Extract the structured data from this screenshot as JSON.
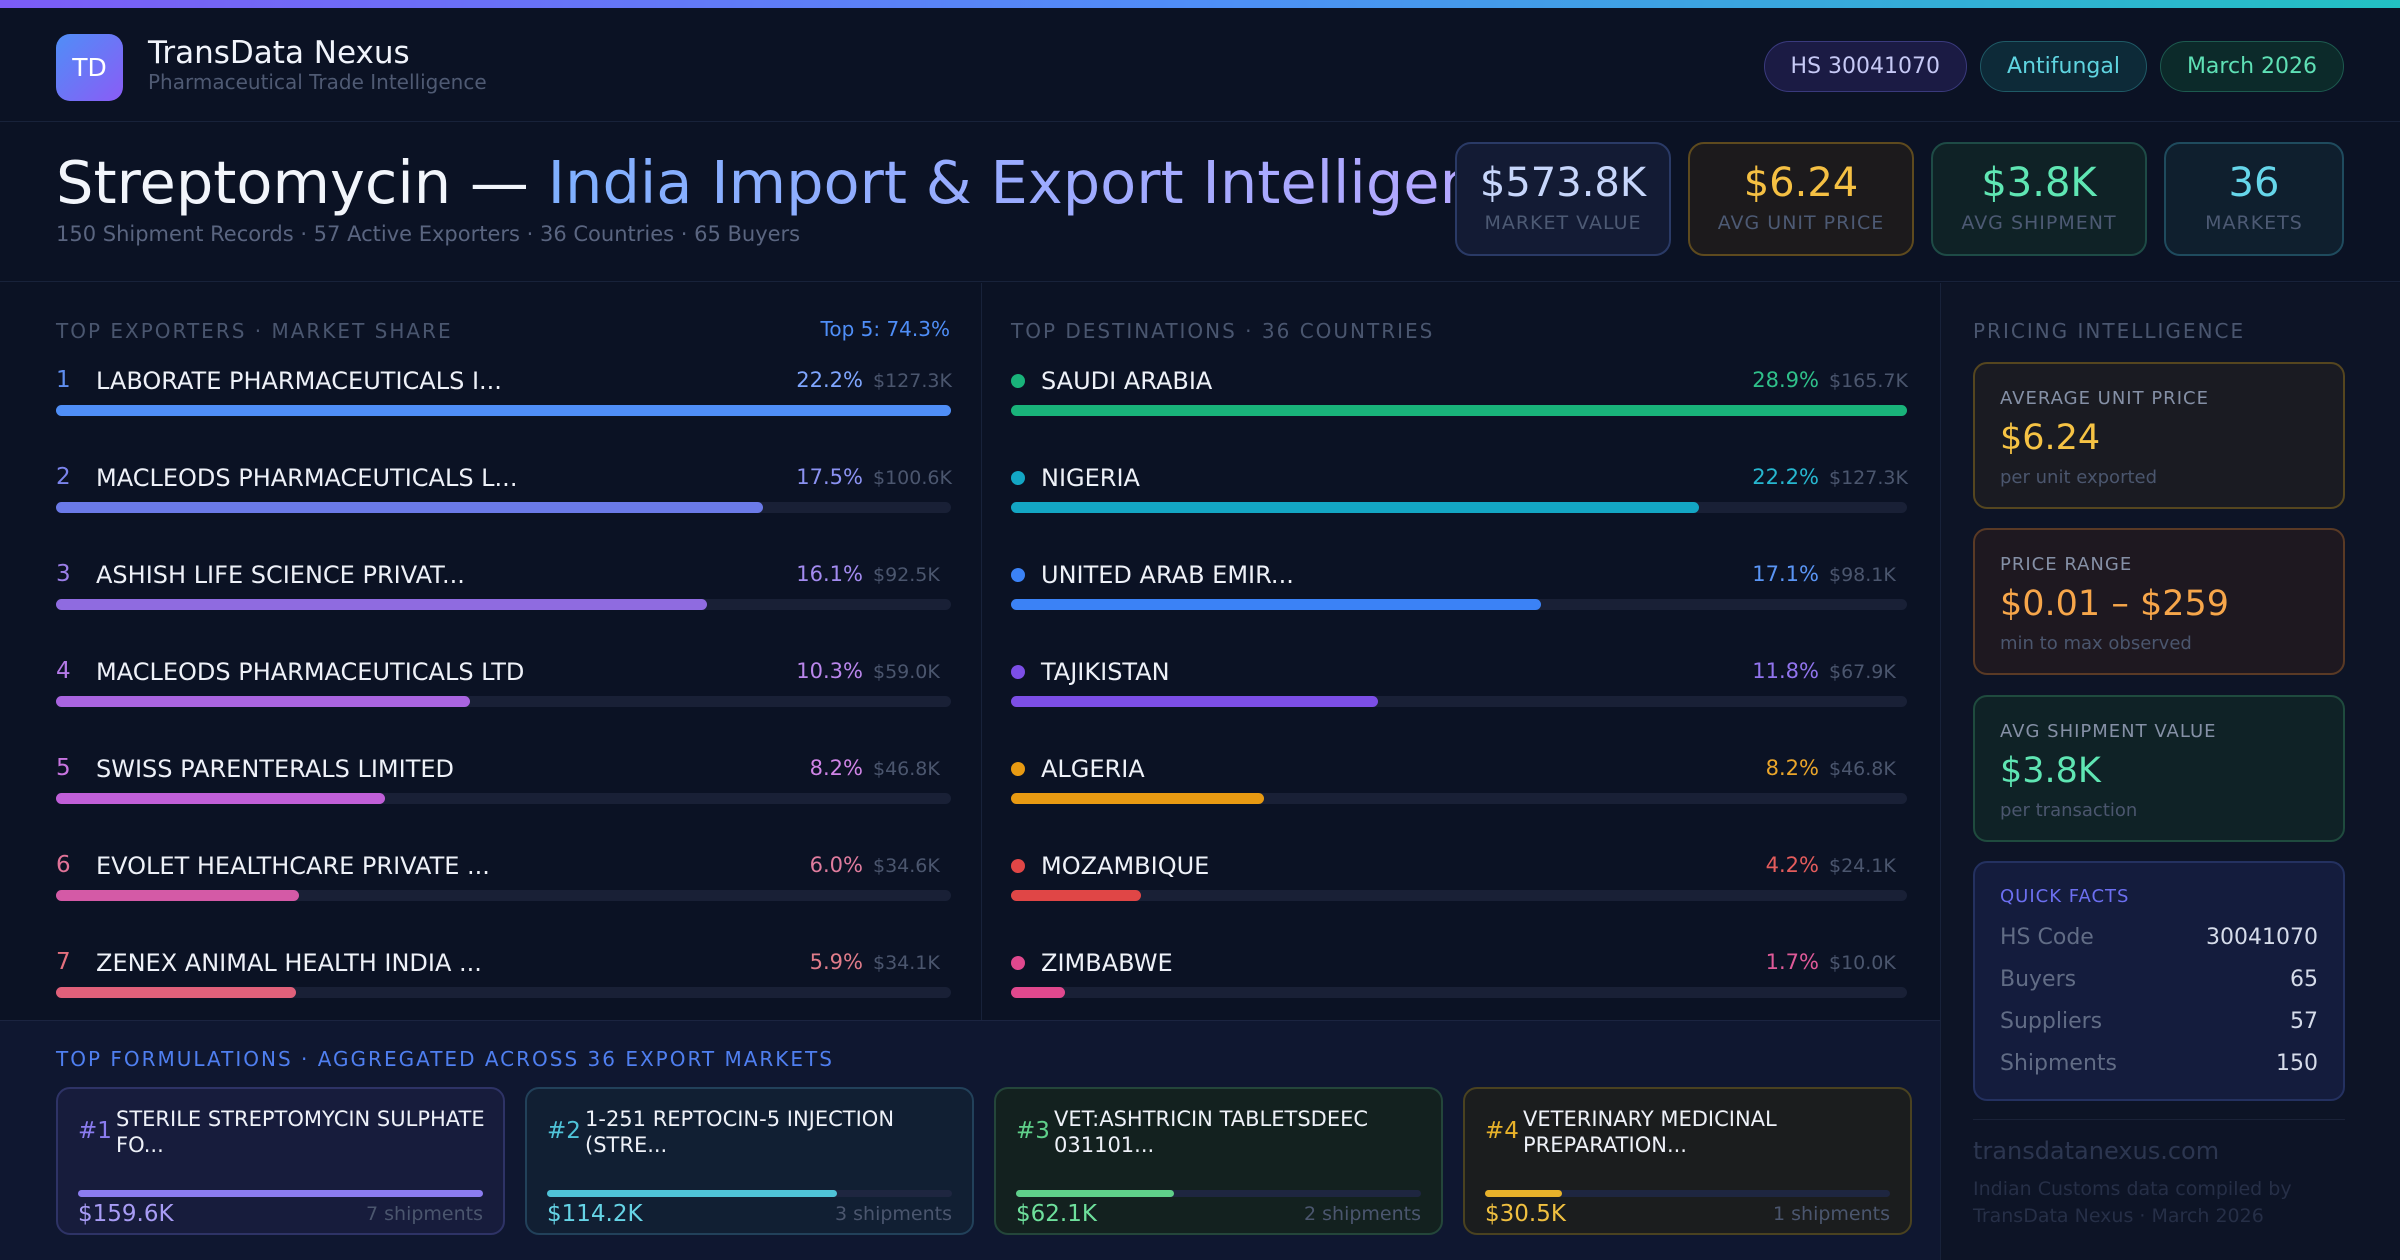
{
  "header": {
    "logo_text": "TD",
    "brand_name": "TransData Nexus",
    "brand_sub": "Pharmaceutical Trade Intelligence",
    "pills": [
      "HS 30041070",
      "Antifungal",
      "March 2026"
    ]
  },
  "title": {
    "product": "Streptomycin — ",
    "rest": "India Import & Export Intelligence",
    "subtitle": "150 Shipment Records · 57 Active Exporters · 36 Countries · 65 Buyers"
  },
  "stats": [
    {
      "value": "$573.8K",
      "label": "MARKET VALUE"
    },
    {
      "value": "$6.24",
      "label": "AVG UNIT PRICE"
    },
    {
      "value": "$3.8K",
      "label": "AVG SHIPMENT"
    },
    {
      "value": "36",
      "label": "MARKETS"
    }
  ],
  "exporters": {
    "label": "TOP EXPORTERS · MARKET SHARE",
    "top5": "Top 5: 74.3%",
    "rows": [
      {
        "rank": "1",
        "name": "LABORATE PHARMACEUTICALS I...",
        "pct": "22.2%",
        "amount": "$127.3K",
        "share": 1.0,
        "color": "#4f8ef7"
      },
      {
        "rank": "2",
        "name": "MACLEODS PHARMACEUTICALS L...",
        "pct": "17.5%",
        "amount": "$100.6K",
        "share": 0.79,
        "color": "#6b7ae8"
      },
      {
        "rank": "3",
        "name": "ASHISH LIFE SCIENCE PRIVAT...",
        "pct": "16.1%",
        "amount": "$92.5K",
        "share": 0.727,
        "color": "#8f6be0"
      },
      {
        "rank": "4",
        "name": "MACLEODS PHARMACEUTICALS LTD",
        "pct": "10.3%",
        "amount": "$59.0K",
        "share": 0.463,
        "color": "#a964e0"
      },
      {
        "rank": "5",
        "name": "SWISS PARENTERALS LIMITED",
        "pct": "8.2%",
        "amount": "$46.8K",
        "share": 0.368,
        "color": "#c05fd8"
      },
      {
        "rank": "6",
        "name": "EVOLET HEALTHCARE PRIVATE ...",
        "pct": "6.0%",
        "amount": "$34.6K",
        "share": 0.272,
        "color": "#d45aa6"
      },
      {
        "rank": "7",
        "name": "ZENEX ANIMAL HEALTH INDIA ...",
        "pct": "5.9%",
        "amount": "$34.1K",
        "share": 0.268,
        "color": "#e0607a"
      }
    ]
  },
  "destinations": {
    "label": "TOP DESTINATIONS · 36 COUNTRIES",
    "rows": [
      {
        "name": "SAUDI ARABIA",
        "pct": "28.9%",
        "amount": "$165.7K",
        "share": 1.0,
        "color": "#19b37a"
      },
      {
        "name": "NIGERIA",
        "pct": "22.2%",
        "amount": "$127.3K",
        "share": 0.768,
        "color": "#13a6c4"
      },
      {
        "name": "UNITED ARAB EMIR...",
        "pct": "17.1%",
        "amount": "$98.1K",
        "share": 0.592,
        "color": "#3b82f6"
      },
      {
        "name": "TAJIKISTAN",
        "pct": "11.8%",
        "amount": "$67.9K",
        "share": 0.41,
        "color": "#7c4ee6"
      },
      {
        "name": "ALGERIA",
        "pct": "8.2%",
        "amount": "$46.8K",
        "share": 0.282,
        "color": "#e89a12"
      },
      {
        "name": "MOZAMBIQUE",
        "pct": "4.2%",
        "amount": "$24.1K",
        "share": 0.145,
        "color": "#e04646"
      },
      {
        "name": "ZIMBABWE",
        "pct": "1.7%",
        "amount": "$10.0K",
        "share": 0.06,
        "color": "#e0488e"
      }
    ]
  },
  "pricing": {
    "label": "PRICING INTELLIGENCE",
    "cards": [
      {
        "label": "AVERAGE UNIT PRICE",
        "value": "$6.24",
        "note": "per unit exported"
      },
      {
        "label": "PRICE RANGE",
        "value": "$0.01 – $259",
        "note": "min to max observed"
      },
      {
        "label": "AVG SHIPMENT VALUE",
        "value": "$3.8K",
        "note": "per transaction"
      }
    ],
    "facts": {
      "title": "QUICK FACTS",
      "items": [
        {
          "key": "HS Code",
          "value": "30041070"
        },
        {
          "key": "Buyers",
          "value": "65"
        },
        {
          "key": "Suppliers",
          "value": "57"
        },
        {
          "key": "Shipments",
          "value": "150"
        }
      ]
    },
    "site": "transdatanexus.com",
    "footnote": "Indian Customs data compiled by TransData Nexus · March 2026"
  },
  "formulations": {
    "label": "TOP FORMULATIONS · AGGREGATED ACROSS 36 EXPORT MARKETS",
    "items": [
      {
        "rank": "#1",
        "name": "STERILE STREPTOMYCIN SULPHATE FO...",
        "value": "$159.6K",
        "shipments": "7 shipments",
        "share": 1.0,
        "color": "#8b7cf0"
      },
      {
        "rank": "#2",
        "name": "1-251 REPTOCIN-5 INJECTION (STRE...",
        "value": "$114.2K",
        "shipments": "3 shipments",
        "share": 0.715,
        "color": "#4fc3d8"
      },
      {
        "rank": "#3",
        "name": "VET:ASHTRICIN TABLETSDEEC 031101...",
        "value": "$62.1K",
        "shipments": "2 shipments",
        "share": 0.389,
        "color": "#5fd08a"
      },
      {
        "rank": "#4",
        "name": "VETERINARY MEDICINAL PREPARATION...",
        "value": "$30.5K",
        "shipments": "1 shipments",
        "share": 0.191,
        "color": "#e8b22a"
      }
    ]
  },
  "colors": {
    "rank_text": [
      "#5f8ef0",
      "#7b84ec",
      "#9b7ee8",
      "#b479e6",
      "#c874e0",
      "#e07398",
      "#e4707e"
    ],
    "pct_exp": [
      "#7fa6ff",
      "#8b92f2",
      "#a38bf0",
      "#ba86ec",
      "#cf84e6",
      "#e07c9e",
      "#e07c8a"
    ],
    "pct_dst": [
      "#2fc08a",
      "#27b7d0",
      "#5a95f5",
      "#9174ee",
      "#eaa52a",
      "#e45c5c",
      "#e05a99"
    ],
    "form_rank": [
      "#8b7cf0",
      "#4fc3d8",
      "#5fd08a",
      "#e8b22a"
    ],
    "form_value": [
      "#a89cf5",
      "#66d4e6",
      "#6ee09c",
      "#f0c040"
    ]
  }
}
